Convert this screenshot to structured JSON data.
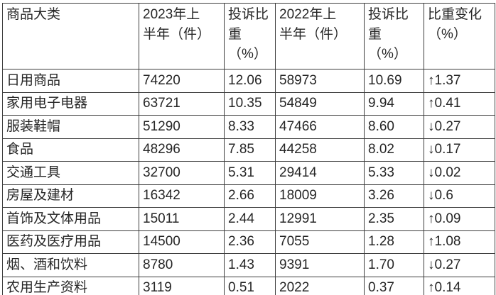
{
  "colors": {
    "background": "#ffffff",
    "grid_border": "#3d3d3d",
    "text": "#262626"
  },
  "table": {
    "headers": [
      "商品大类",
      "2023年上\n半年（件）",
      "投诉比\n重\n（%）",
      "2022年上\n半年（件）",
      "投诉比\n重\n（%）",
      "比重变化\n（%）"
    ],
    "rows": [
      [
        "日用商品",
        "74220",
        "12.06",
        "58973",
        "10.69",
        "↑1.37"
      ],
      [
        "家用电子电器",
        "63721",
        "10.35",
        "54849",
        "9.94",
        "↑0.41"
      ],
      [
        "服装鞋帽",
        "51290",
        "8.33",
        "47466",
        "8.60",
        "↓0.27"
      ],
      [
        "食品",
        "48296",
        "7.85",
        "44258",
        "8.02",
        "↓0.17"
      ],
      [
        "交通工具",
        "32700",
        "5.31",
        "29414",
        "5.33",
        "↓0.02"
      ],
      [
        "房屋及建材",
        "16342",
        "2.66",
        "18009",
        "3.26",
        "↓0.6"
      ],
      [
        "首饰及文体用品",
        "15011",
        "2.44",
        "12991",
        "2.35",
        "↑0.09"
      ],
      [
        "医药及医疗用品",
        "14500",
        "2.36",
        "7055",
        "1.28",
        "↑1.08"
      ],
      [
        "烟、酒和饮料",
        "8780",
        "1.43",
        "9391",
        "1.70",
        "↓0.27"
      ],
      [
        "农用生产资料",
        "3119",
        "0.51",
        "2022",
        "0.37",
        "↑0.14"
      ]
    ]
  }
}
